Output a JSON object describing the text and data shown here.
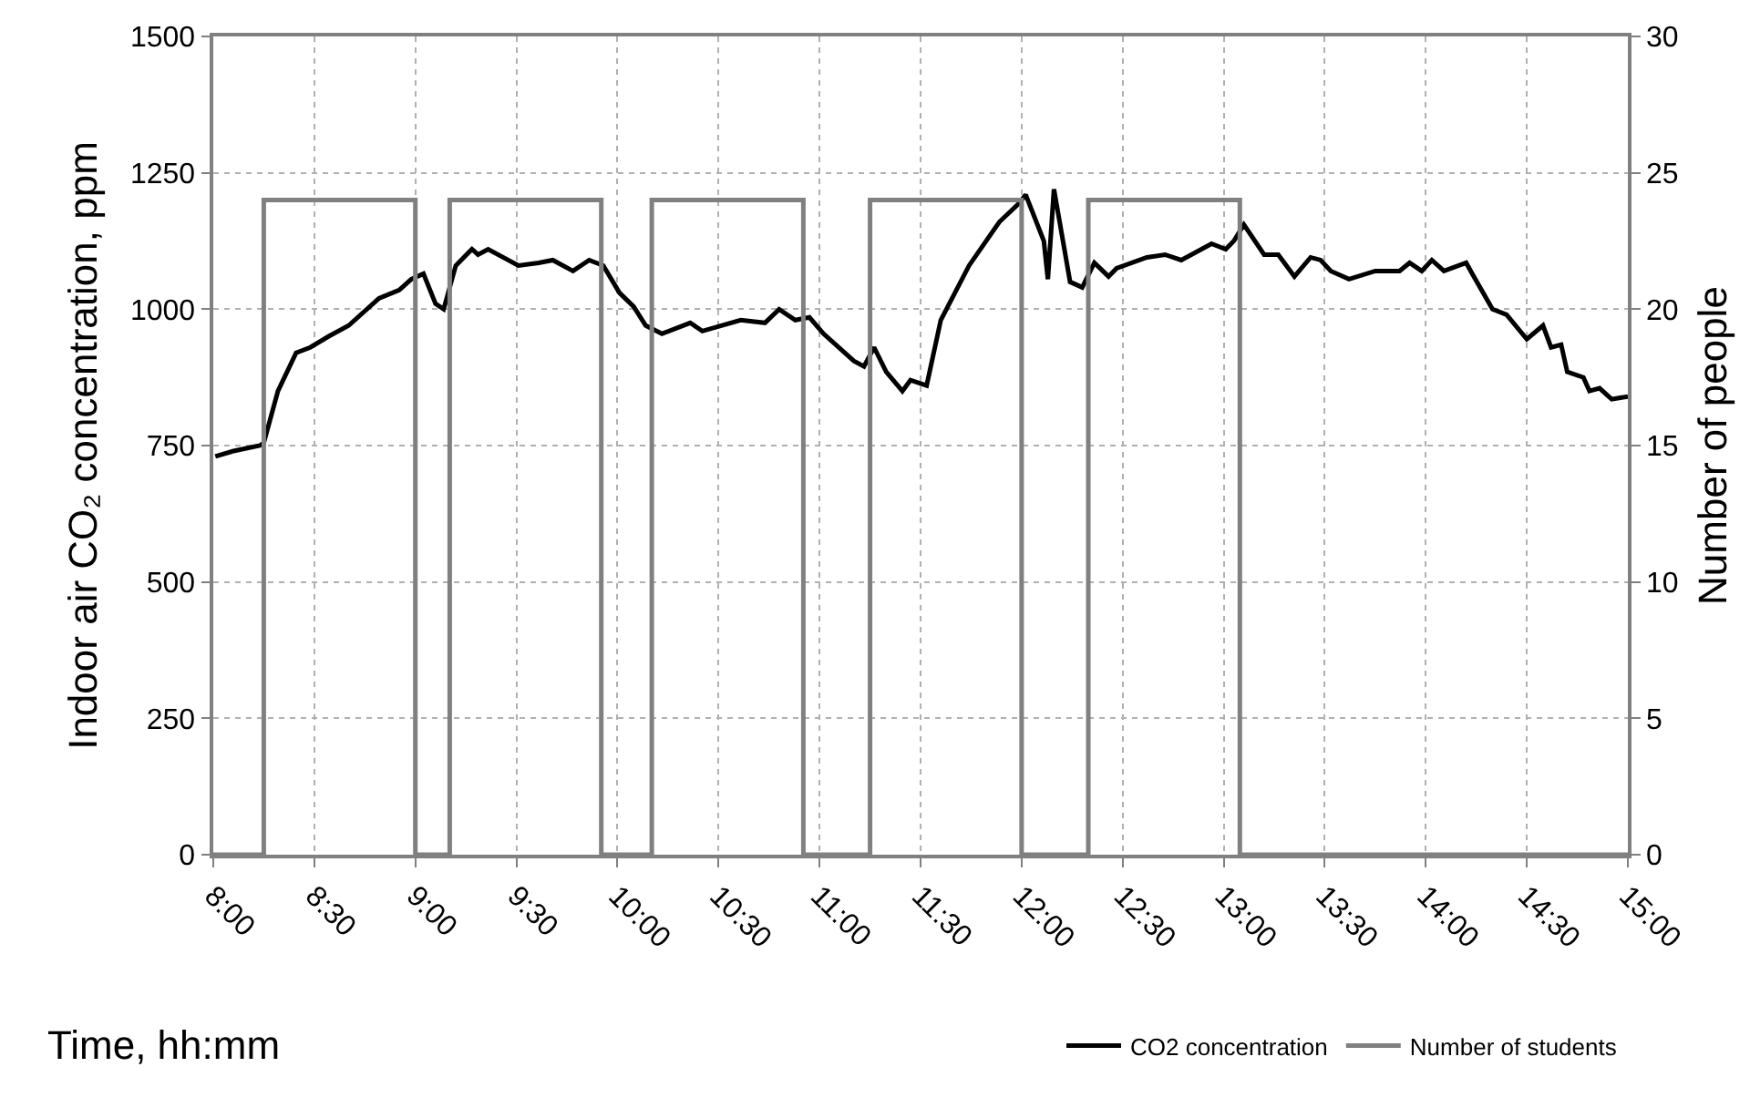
{
  "chart_data": {
    "type": "line",
    "xlabel": "Time, hh:mm",
    "ylabel": "Indoor air CO₂ concentration, ppm",
    "y2label": "Number of people",
    "xlim": [
      8,
      15
    ],
    "xticks": [
      {
        "value": 8,
        "label": "8:00"
      },
      {
        "value": 8.5,
        "label": "8:30"
      },
      {
        "value": 9,
        "label": "9:00"
      },
      {
        "value": 9.5,
        "label": "9:30"
      },
      {
        "value": 10,
        "label": "10:00"
      },
      {
        "value": 10.5,
        "label": "10:30"
      },
      {
        "value": 11,
        "label": "11:00"
      },
      {
        "value": 11.5,
        "label": "11:30"
      },
      {
        "value": 12,
        "label": "12:00"
      },
      {
        "value": 12.5,
        "label": "12:30"
      },
      {
        "value": 13,
        "label": "13:00"
      },
      {
        "value": 13.5,
        "label": "13:30"
      },
      {
        "value": 14,
        "label": "14:00"
      },
      {
        "value": 14.5,
        "label": "14:30"
      },
      {
        "value": 15,
        "label": "15:00"
      }
    ],
    "ylim": [
      0,
      1500
    ],
    "yticks": [
      0,
      250,
      500,
      750,
      1000,
      1250,
      1500
    ],
    "y2lim": [
      0,
      30
    ],
    "y2ticks": [
      0,
      5,
      10,
      15,
      20,
      25,
      30
    ],
    "grid": true,
    "legend": "bottom right",
    "line_style": "solid",
    "series": [
      {
        "name": "CO2 concentration",
        "color": "#000000",
        "x": [
          8.01,
          8.1,
          8.23,
          8.25,
          8.32,
          8.41,
          8.48,
          8.57,
          8.67,
          8.82,
          8.92,
          8.98,
          9.04,
          9.1,
          9.14,
          9.2,
          9.28,
          9.31,
          9.36,
          9.51,
          9.61,
          9.68,
          9.78,
          9.86,
          9.93,
          10.01,
          10.08,
          10.14,
          10.22,
          10.36,
          10.42,
          10.61,
          10.73,
          10.8,
          10.88,
          10.95,
          11.02,
          11.17,
          11.22,
          11.27,
          11.33,
          11.41,
          11.45,
          11.53,
          11.6,
          11.67,
          11.74,
          11.89,
          11.99,
          12.02,
          12.11,
          12.13,
          12.16,
          12.24,
          12.3,
          12.36,
          12.43,
          12.47,
          12.62,
          12.71,
          12.79,
          12.94,
          13.01,
          13.05,
          13.1,
          13.2,
          13.27,
          13.35,
          13.43,
          13.48,
          13.53,
          13.62,
          13.75,
          13.87,
          13.92,
          13.98,
          14.03,
          14.09,
          14.2,
          14.23,
          14.33,
          14.4,
          14.5,
          14.58,
          14.62,
          14.67,
          14.7,
          14.78,
          14.81,
          14.86,
          14.92,
          15.0
        ],
        "values": [
          730,
          740,
          750,
          755,
          850,
          920,
          930,
          950,
          970,
          1020,
          1035,
          1055,
          1065,
          1010,
          1000,
          1080,
          1110,
          1100,
          1110,
          1080,
          1085,
          1090,
          1070,
          1090,
          1080,
          1030,
          1005,
          970,
          955,
          975,
          960,
          980,
          975,
          1000,
          980,
          985,
          955,
          905,
          895,
          930,
          885,
          850,
          870,
          860,
          980,
          1030,
          1080,
          1160,
          1195,
          1210,
          1125,
          1055,
          1220,
          1050,
          1040,
          1085,
          1060,
          1075,
          1095,
          1100,
          1090,
          1120,
          1110,
          1125,
          1155,
          1100,
          1100,
          1060,
          1095,
          1090,
          1070,
          1055,
          1070,
          1070,
          1085,
          1070,
          1090,
          1070,
          1085,
          1065,
          1000,
          990,
          945,
          970,
          930,
          935,
          885,
          875,
          850,
          855,
          835,
          840
        ]
      },
      {
        "name": "Number of students",
        "color": "#808080",
        "type": "step",
        "axis": "y2",
        "x": [
          8,
          8.25,
          9,
          9.17,
          9.92,
          10.17,
          10.92,
          11.25,
          12,
          12.33,
          13.08,
          15
        ],
        "values": [
          0,
          24,
          0,
          24,
          0,
          24,
          0,
          24,
          0,
          24,
          0,
          0
        ]
      }
    ]
  }
}
